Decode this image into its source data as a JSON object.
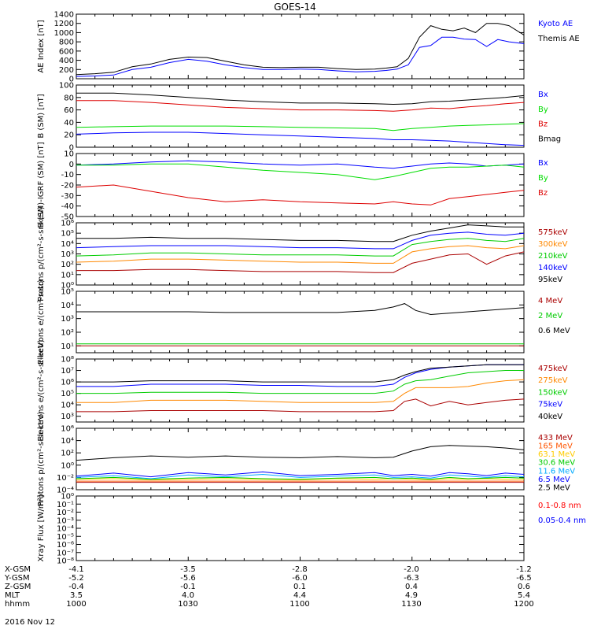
{
  "title": "GOES-14",
  "date_label": "2016 Nov 12",
  "orbit": {
    "rows": [
      {
        "name": "X-GSM",
        "values": [
          "-4.1",
          "-3.5",
          "-2.8",
          "-2.0",
          "-1.2"
        ]
      },
      {
        "name": "Y-GSM",
        "values": [
          "-5.2",
          "-5.6",
          "-6.0",
          "-6.3",
          "-6.5"
        ]
      },
      {
        "name": "Z-GSM",
        "values": [
          "-0.4",
          "-0.1",
          "0.1",
          "0.4",
          "0.6"
        ]
      },
      {
        "name": "MLT",
        "values": [
          "3.5",
          "4.0",
          "4.4",
          "4.9",
          "5.4"
        ]
      },
      {
        "name": "hhmm",
        "values": [
          "1000",
          "1030",
          "1100",
          "1130",
          "1200"
        ]
      }
    ]
  },
  "chart_data": [
    {
      "type": "line",
      "ylabel": "AE Index [nT]",
      "scale": "linear",
      "ylim": [
        0,
        1400
      ],
      "yticks": [
        0,
        200,
        400,
        600,
        800,
        1000,
        1200,
        1400
      ],
      "yticklabels": [
        "0",
        "200",
        "400",
        "600",
        "800",
        "1000",
        "1200",
        "1400"
      ],
      "x": [
        1000,
        1005,
        1010,
        1015,
        1020,
        1025,
        1030,
        1035,
        1040,
        1045,
        1050,
        1055,
        1100,
        1105,
        1110,
        1115,
        1120,
        1123,
        1126,
        1129,
        1132,
        1135,
        1138,
        1141,
        1144,
        1147,
        1150,
        1153,
        1156,
        1200
      ],
      "series": [
        {
          "name": "Kyoto AE",
          "color": "#0000ff",
          "values": [
            50,
            60,
            80,
            200,
            250,
            350,
            420,
            380,
            300,
            240,
            200,
            200,
            210,
            200,
            170,
            150,
            160,
            180,
            210,
            300,
            680,
            720,
            900,
            900,
            860,
            850,
            700,
            850,
            800,
            760
          ]
        },
        {
          "name": "Themis AE",
          "color": "#000000",
          "values": [
            90,
            110,
            140,
            260,
            320,
            420,
            470,
            460,
            380,
            300,
            250,
            240,
            250,
            250,
            220,
            200,
            210,
            230,
            260,
            440,
            900,
            1150,
            1070,
            1040,
            1100,
            1000,
            1200,
            1200,
            1150,
            950
          ]
        }
      ]
    },
    {
      "type": "line",
      "ylabel": "B (SM) [nT]",
      "scale": "linear",
      "ylim": [
        0,
        100
      ],
      "yticks": [
        0,
        20,
        40,
        60,
        80,
        100
      ],
      "yticklabels": [
        "0",
        "20",
        "40",
        "60",
        "80",
        "100"
      ],
      "x": [
        1000,
        1010,
        1020,
        1030,
        1040,
        1050,
        1100,
        1110,
        1120,
        1125,
        1130,
        1135,
        1140,
        1145,
        1150,
        1155,
        1200
      ],
      "series": [
        {
          "name": "Bx",
          "color": "#0000ff",
          "values": [
            21,
            23,
            24,
            24,
            22,
            20,
            18,
            16,
            14,
            12,
            12,
            11,
            10,
            8,
            6,
            4,
            3
          ]
        },
        {
          "name": "By",
          "color": "#00dd00",
          "values": [
            32,
            33,
            34,
            34,
            34,
            33,
            32,
            31,
            30,
            27,
            30,
            32,
            34,
            35,
            36,
            37,
            38
          ]
        },
        {
          "name": "Bz",
          "color": "#dd0000",
          "values": [
            75,
            75,
            72,
            68,
            64,
            62,
            60,
            60,
            59,
            58,
            60,
            63,
            62,
            65,
            67,
            70,
            72
          ]
        },
        {
          "name": "Bmag",
          "color": "#000000",
          "values": [
            87,
            87,
            84,
            80,
            76,
            73,
            71,
            71,
            70,
            69,
            70,
            73,
            74,
            76,
            78,
            80,
            83
          ]
        }
      ]
    },
    {
      "type": "line",
      "ylabel": "B (SM)-IGRF (SM) [nT]",
      "scale": "linear",
      "ylim": [
        -50,
        10
      ],
      "yticks": [
        -50,
        -40,
        -30,
        -20,
        -10,
        0,
        10
      ],
      "yticklabels": [
        "-50",
        "-40",
        "-30",
        "-20",
        "-10",
        "0",
        "10"
      ],
      "x": [
        1000,
        1010,
        1020,
        1030,
        1040,
        1050,
        1100,
        1110,
        1120,
        1125,
        1130,
        1135,
        1140,
        1145,
        1150,
        1155,
        1200
      ],
      "series": [
        {
          "name": "Bx",
          "color": "#0000ff",
          "values": [
            -1,
            0,
            2,
            3,
            2,
            0,
            -1,
            0,
            -3,
            -4,
            -2,
            0,
            1,
            0,
            -2,
            -1,
            0
          ]
        },
        {
          "name": "By",
          "color": "#00dd00",
          "values": [
            -1,
            -1,
            0,
            0,
            -3,
            -6,
            -8,
            -10,
            -15,
            -12,
            -8,
            -4,
            -3,
            -3,
            -2,
            -1,
            -3
          ]
        },
        {
          "name": "Bz",
          "color": "#dd0000",
          "values": [
            -22,
            -20,
            -26,
            -32,
            -36,
            -34,
            -36,
            -37,
            -38,
            -36,
            -38,
            -39,
            -33,
            -31,
            -29,
            -27,
            -25
          ]
        }
      ]
    },
    {
      "type": "line",
      "ylabel": "Protons p/(cm²-s-sr-keV)",
      "scale": "log",
      "ylim": [
        0,
        6
      ],
      "yticks": [
        0,
        1,
        2,
        3,
        4,
        5,
        6
      ],
      "yticklabels": [
        "10⁰",
        "10¹",
        "10²",
        "10³",
        "10⁴",
        "10⁵",
        "10⁶"
      ],
      "x": [
        1000,
        1010,
        1020,
        1030,
        1040,
        1050,
        1100,
        1110,
        1120,
        1125,
        1130,
        1135,
        1140,
        1145,
        1150,
        1155,
        1200
      ],
      "series": [
        {
          "name": "575keV",
          "color": "#aa0000",
          "values": [
            1.4,
            1.4,
            1.5,
            1.5,
            1.4,
            1.3,
            1.3,
            1.3,
            1.2,
            1.2,
            2.1,
            2.5,
            2.9,
            3.0,
            2.0,
            2.8,
            3.2
          ]
        },
        {
          "name": "300keV",
          "color": "#ff8800",
          "values": [
            2.2,
            2.3,
            2.5,
            2.5,
            2.4,
            2.3,
            2.2,
            2.2,
            2.1,
            2.1,
            3.2,
            3.5,
            3.7,
            3.8,
            3.6,
            3.5,
            3.8
          ]
        },
        {
          "name": "210keV",
          "color": "#00cc00",
          "values": [
            2.8,
            2.9,
            3.1,
            3.1,
            3.0,
            2.9,
            2.9,
            2.9,
            2.8,
            2.8,
            3.9,
            4.2,
            4.4,
            4.5,
            4.3,
            4.2,
            4.5
          ]
        },
        {
          "name": "140keV",
          "color": "#0000ff",
          "values": [
            3.6,
            3.7,
            3.8,
            3.8,
            3.8,
            3.7,
            3.6,
            3.6,
            3.5,
            3.5,
            4.3,
            4.8,
            5.0,
            5.1,
            4.9,
            4.8,
            5.0
          ]
        },
        {
          "name": "95keV",
          "color": "#000000",
          "values": [
            4.5,
            4.5,
            4.6,
            4.5,
            4.5,
            4.4,
            4.3,
            4.3,
            4.2,
            4.2,
            4.8,
            5.2,
            5.5,
            5.8,
            5.7,
            5.6,
            5.6
          ]
        }
      ]
    },
    {
      "type": "line",
      "ylabel": "Electrons e/(cm²-s-sr)",
      "scale": "log",
      "ylim": [
        0.5,
        5
      ],
      "yticks": [
        1,
        2,
        3,
        4,
        5
      ],
      "yticklabels": [
        "10¹",
        "10²",
        "10³",
        "10⁴",
        "10⁵"
      ],
      "x": [
        1000,
        1010,
        1020,
        1030,
        1040,
        1050,
        1100,
        1110,
        1120,
        1125,
        1128,
        1131,
        1135,
        1140,
        1145,
        1150,
        1155,
        1200
      ],
      "series": [
        {
          "name": "4 MeV",
          "color": "#aa0000",
          "values": [
            1.0,
            1.0,
            1.0,
            1.0,
            1.0,
            1.0,
            1.0,
            1.0,
            1.0,
            1.0,
            1.0,
            1.0,
            1.0,
            1.0,
            1.0,
            1.0,
            1.0,
            1.0
          ]
        },
        {
          "name": "2 MeV",
          "color": "#00cc00",
          "values": [
            1.15,
            1.15,
            1.15,
            1.15,
            1.15,
            1.15,
            1.15,
            1.15,
            1.15,
            1.15,
            1.15,
            1.15,
            1.15,
            1.15,
            1.15,
            1.15,
            1.15,
            1.15
          ]
        },
        {
          "name": "0.6 MeV",
          "color": "#000000",
          "values": [
            3.5,
            3.5,
            3.5,
            3.5,
            3.45,
            3.45,
            3.45,
            3.45,
            3.6,
            3.85,
            4.1,
            3.6,
            3.3,
            3.4,
            3.5,
            3.6,
            3.7,
            3.8
          ]
        }
      ]
    },
    {
      "type": "line",
      "ylabel": "Electrons e/(cm²-s-sr-keV)",
      "scale": "log",
      "ylim": [
        2.5,
        8
      ],
      "yticks": [
        3,
        4,
        5,
        6,
        7,
        8
      ],
      "yticklabels": [
        "10³",
        "10⁴",
        "10⁵",
        "10⁶",
        "10⁷",
        "10⁸"
      ],
      "x": [
        1000,
        1010,
        1020,
        1030,
        1040,
        1050,
        1100,
        1110,
        1120,
        1125,
        1128,
        1131,
        1135,
        1140,
        1145,
        1150,
        1155,
        1200
      ],
      "series": [
        {
          "name": "475keV",
          "color": "#aa0000",
          "values": [
            3.4,
            3.4,
            3.5,
            3.5,
            3.5,
            3.5,
            3.4,
            3.4,
            3.4,
            3.5,
            4.3,
            4.5,
            3.9,
            4.3,
            4.0,
            4.2,
            4.4,
            4.5
          ]
        },
        {
          "name": "275keV",
          "color": "#ff8800",
          "values": [
            4.2,
            4.2,
            4.4,
            4.4,
            4.4,
            4.3,
            4.2,
            4.2,
            4.2,
            4.3,
            5.0,
            5.5,
            5.5,
            5.5,
            5.6,
            5.9,
            6.1,
            6.2
          ]
        },
        {
          "name": "150keV",
          "color": "#00cc00",
          "values": [
            5.0,
            5.0,
            5.1,
            5.1,
            5.1,
            5.0,
            5.0,
            5.0,
            5.0,
            5.2,
            5.8,
            6.1,
            6.2,
            6.5,
            6.8,
            6.9,
            7.0,
            7.0
          ]
        },
        {
          "name": "75keV",
          "color": "#0000ff",
          "values": [
            5.6,
            5.6,
            5.8,
            5.8,
            5.8,
            5.7,
            5.7,
            5.6,
            5.6,
            5.8,
            6.4,
            6.8,
            7.1,
            7.3,
            7.4,
            7.5,
            7.5,
            7.5
          ]
        },
        {
          "name": "40keV",
          "color": "#000000",
          "values": [
            6.0,
            6.0,
            6.1,
            6.1,
            6.1,
            6.0,
            6.0,
            6.0,
            6.0,
            6.2,
            6.6,
            6.9,
            7.2,
            7.3,
            7.4,
            7.5,
            7.5,
            7.5
          ]
        }
      ]
    },
    {
      "type": "line",
      "ylabel": "Protons p/(cm²-s-sr-keV)",
      "scale": "log",
      "ylim": [
        -4,
        6
      ],
      "yticks": [
        -4,
        -2,
        0,
        2,
        4,
        6
      ],
      "yticklabels": [
        "10⁻⁴",
        "10⁻²",
        "10⁰",
        "10²",
        "10⁴",
        "10⁶"
      ],
      "x": [
        1000,
        1010,
        1020,
        1030,
        1040,
        1050,
        1100,
        1110,
        1120,
        1125,
        1130,
        1135,
        1140,
        1145,
        1150,
        1155,
        1200
      ],
      "series": [
        {
          "name": "433 MeV",
          "color": "#aa0000",
          "values": [
            -2.8,
            -2.8,
            -2.8,
            -2.8,
            -2.8,
            -2.8,
            -2.8,
            -2.8,
            -2.8,
            -2.8,
            -2.8,
            -2.8,
            -2.8,
            -2.8,
            -2.8,
            -2.8,
            -2.8
          ]
        },
        {
          "name": "165 MeV",
          "color": "#ff5500",
          "values": [
            -2.6,
            -2.6,
            -2.6,
            -2.6,
            -2.6,
            -2.6,
            -2.6,
            -2.6,
            -2.6,
            -2.6,
            -2.6,
            -2.6,
            -2.6,
            -2.6,
            -2.6,
            -2.6,
            -2.6
          ]
        },
        {
          "name": "63.1 MeV",
          "color": "#ffcc00",
          "values": [
            -2.3,
            -2.2,
            -2.4,
            -2.3,
            -2.2,
            -2.3,
            -2.4,
            -2.2,
            -2.3,
            -2.2,
            -2.3,
            -2.4,
            -2.2,
            -2.3,
            -2.2,
            -2.3,
            -2.3
          ]
        },
        {
          "name": "30.6 MeV",
          "color": "#00cc00",
          "values": [
            -2.2,
            -2.0,
            -2.3,
            -2.1,
            -2.0,
            -2.2,
            -2.3,
            -2.1,
            -2.0,
            -2.2,
            -2.1,
            -2.3,
            -2.0,
            -2.2,
            -2.1,
            -2.0,
            -2.1
          ]
        },
        {
          "name": "11.6 MeV",
          "color": "#00aaff",
          "values": [
            -2.0,
            -1.7,
            -2.2,
            -1.6,
            -1.9,
            -1.5,
            -2.0,
            -1.8,
            -1.6,
            -2.0,
            -1.9,
            -2.1,
            -1.6,
            -1.8,
            -2.0,
            -1.7,
            -1.9
          ]
        },
        {
          "name": "6.5 MeV",
          "color": "#0000ff",
          "values": [
            -1.8,
            -1.3,
            -1.9,
            -1.2,
            -1.6,
            -1.1,
            -1.7,
            -1.5,
            -1.2,
            -1.7,
            -1.5,
            -1.8,
            -1.2,
            -1.4,
            -1.7,
            -1.3,
            -1.5
          ]
        },
        {
          "name": "2.5 MeV",
          "color": "#000000",
          "values": [
            0.8,
            1.2,
            1.5,
            1.3,
            1.5,
            1.3,
            1.2,
            1.4,
            1.2,
            1.3,
            2.3,
            3.0,
            3.2,
            3.1,
            3.0,
            2.8,
            2.5
          ]
        }
      ]
    },
    {
      "type": "line",
      "ylabel": "Xray Flux [W/m²]",
      "scale": "log",
      "ylim": [
        -8,
        0
      ],
      "yticks": [
        -8,
        -7,
        -6,
        -5,
        -4,
        -3,
        -2,
        -1,
        0
      ],
      "yticklabels": [
        "10⁻⁸",
        "10⁻⁷",
        "10⁻⁶",
        "10⁻⁵",
        "10⁻⁴",
        "10⁻³",
        "10⁻²",
        "10⁻¹",
        "10⁰"
      ],
      "x": [],
      "series": [
        {
          "name": "0.1-0.8 nm",
          "color": "#ff0000",
          "values": []
        },
        {
          "name": "0.05-0.4 nm",
          "color": "#0000ff",
          "values": []
        }
      ]
    }
  ]
}
